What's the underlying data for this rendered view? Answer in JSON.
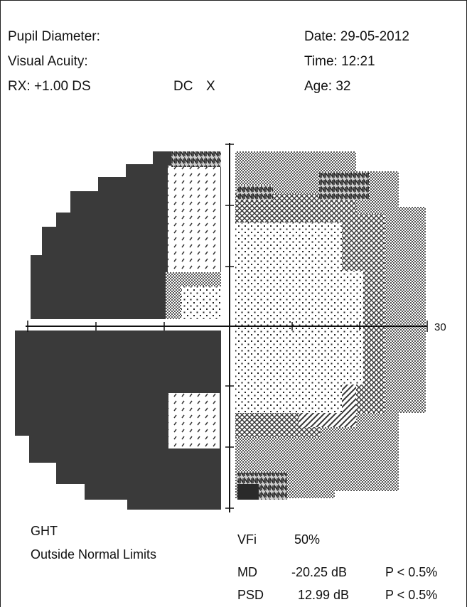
{
  "header": {
    "pupil_diameter_label": "Pupil Diameter:",
    "visual_acuity_label": "Visual Acuity:",
    "rx_label": "RX: +1.00 DS",
    "dc_label": "DC",
    "x_label": "X",
    "date_label": "Date: 29-05-2012",
    "time_label": "Time: 12:21",
    "age_label": "Age: 32"
  },
  "plot": {
    "axis_label": "30"
  },
  "results": {
    "ght_label": "GHT",
    "ght_value": "Outside Normal Limits",
    "vfi_label": "VFi",
    "vfi_value": "50%",
    "md_label": "MD",
    "md_value": "-20.25 dB",
    "md_p": "P < 0.5%",
    "psd_label": "PSD",
    "psd_value": "12.99 dB",
    "psd_p": "P < 0.5%"
  },
  "colors": {
    "dense": "#3a3a3a",
    "ink": "#1a1a1a"
  }
}
